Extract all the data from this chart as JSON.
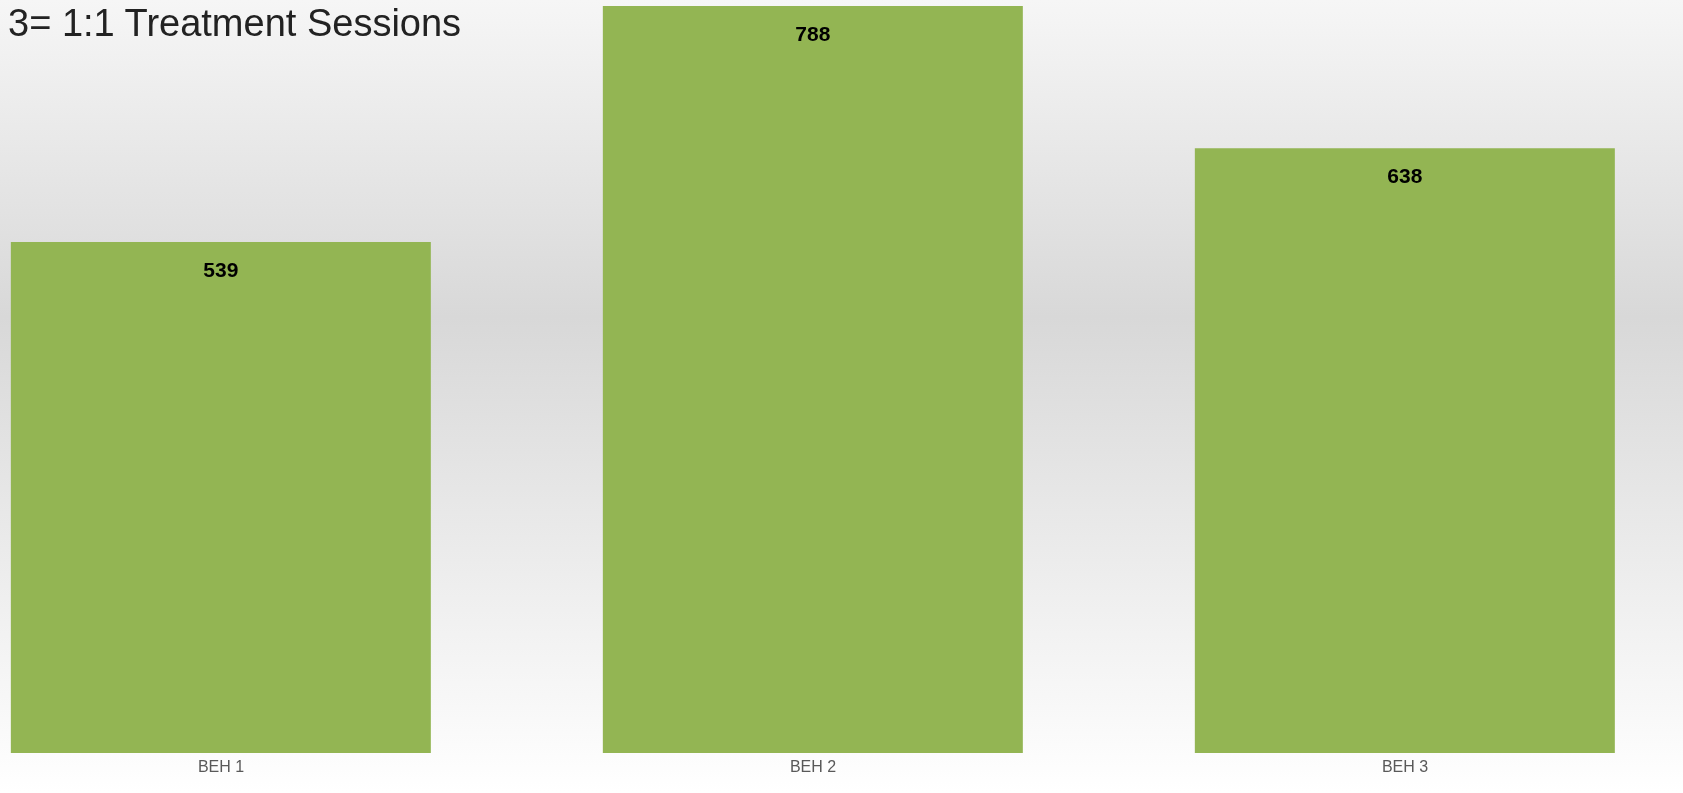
{
  "chart_data": {
    "type": "bar",
    "title": "3= 1:1 Treatment Sessions",
    "categories": [
      "BEH 1",
      "BEH 2",
      "BEH 3"
    ],
    "values": [
      539,
      788,
      638
    ],
    "color": "#93b553",
    "data_labels": true,
    "tick_labels": "x"
  }
}
